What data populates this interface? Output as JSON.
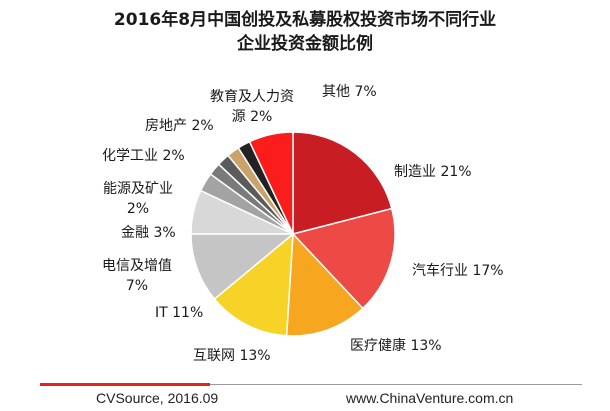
{
  "title_line1": "2016年8月中国创投及私募股权投资市场不同行业",
  "title_line2": "企业投资金额比例",
  "chart_data": {
    "type": "pie",
    "title": "2016年8月中国创投及私募股权投资市场不同行业企业投资金额比例",
    "legend": "none",
    "slices": [
      {
        "name": "制造业",
        "value": 21,
        "label": "制造业 21%",
        "color": "#c81e23"
      },
      {
        "name": "汽车行业",
        "value": 17,
        "label": "汽车行业 17%",
        "color": "#ee4a45"
      },
      {
        "name": "医疗健康",
        "value": 13,
        "label": "医疗健康 13%",
        "color": "#f6a71f"
      },
      {
        "name": "互联网",
        "value": 13,
        "label": "互联网 13%",
        "color": "#f6d326"
      },
      {
        "name": "IT",
        "value": 11,
        "label": "IT 11%",
        "color": "#c5c5c5"
      },
      {
        "name": "电信及增值",
        "value": 7,
        "label": "电信及增值 7%",
        "color": "#d8d8d8"
      },
      {
        "name": "金融",
        "value": 3,
        "label": "金融 3%",
        "color": "#a3a3a3"
      },
      {
        "name": "能源及矿业",
        "value": 2,
        "label": "能源及矿业 2%",
        "color": "#7a7a7a"
      },
      {
        "name": "化学工业",
        "value": 2,
        "label": "化学工业 2%",
        "color": "#5b5b5b"
      },
      {
        "name": "房地产",
        "value": 2,
        "label": "房地产 2%",
        "color": "#c9a36b"
      },
      {
        "name": "教育及人力资源",
        "value": 2,
        "label": "教育及人力资源 2%",
        "color": "#222222"
      },
      {
        "name": "其他",
        "value": 7,
        "label": "其他 7%",
        "color": "#fb1c1c"
      }
    ]
  },
  "footer": {
    "source": "CVSource, 2016.09",
    "website": "www.ChinaVenture.com.cn"
  },
  "colors": {
    "footer_red": "#e5231b",
    "footer_grey": "#9a9a9a"
  }
}
